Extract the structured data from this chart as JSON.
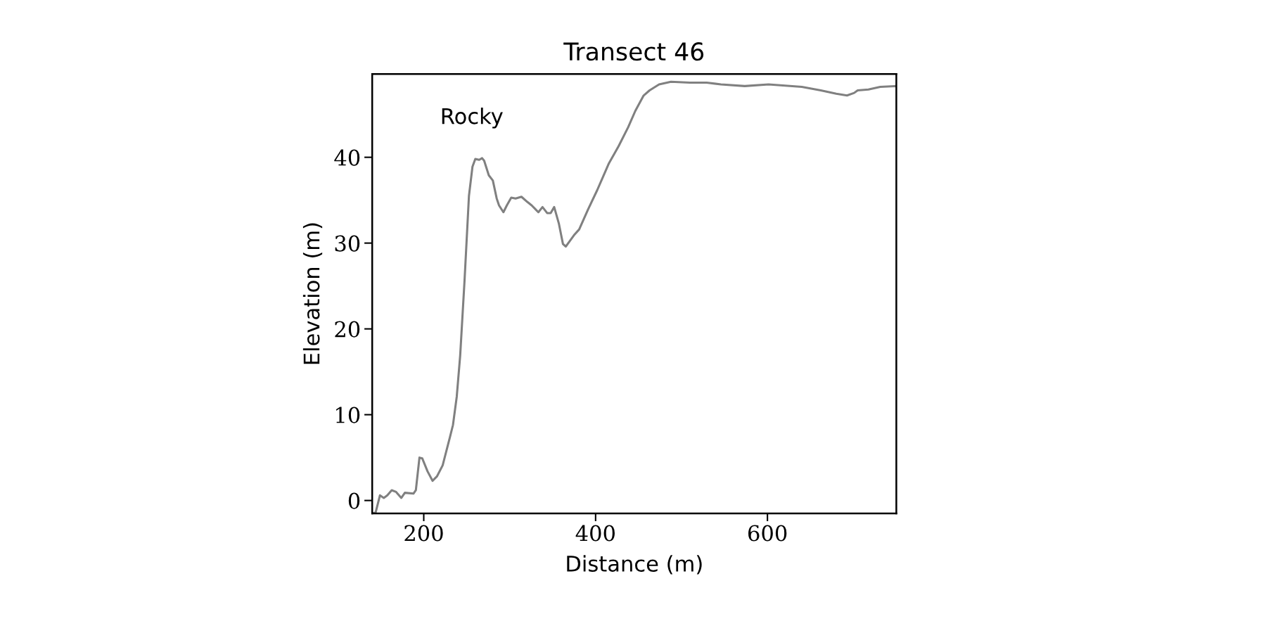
{
  "chart_data": {
    "type": "line",
    "title": "Transect 46",
    "xlabel": "Distance (m)",
    "ylabel": "Elevation (m)",
    "annotations": [
      "Rocky"
    ],
    "series": [
      {
        "color": "#808080",
        "x": [
          140,
          144,
          149,
          153.5,
          157.6,
          162.7,
          167.8,
          173.9,
          178,
          188,
          190.8,
          195,
          198.3,
          204.4,
          210.2,
          215.3,
          222,
          230.5,
          234,
          238.4,
          242.4,
          247.5,
          252.6,
          256.7,
          260,
          264.5,
          267.9,
          270.3,
          275.7,
          280.4,
          284.9,
          287.6,
          292.7,
          296.7,
          301.8,
          306.9,
          313.7,
          320.5,
          325.6,
          333.4,
          338.2,
          343.6,
          347.7,
          351.8,
          357.2,
          362,
          365.3,
          369.7,
          375.5,
          380.9,
          391.1,
          402,
          415.5,
          426.8,
          437.9,
          446.2,
          455.9,
          462.8,
          473.9,
          487.7,
          509.9,
          529.3,
          545.9,
          573.6,
          601.3,
          640,
          662.1,
          680.1,
          692.6,
          700.9,
          705,
          717.5,
          731.3,
          750
        ],
        "values": [
          -1.5,
          -1.4,
          0.6,
          0.3,
          0.6,
          1.2,
          1.0,
          0.3,
          0.9,
          0.8,
          1.2,
          5.0,
          4.9,
          3.4,
          2.3,
          2.8,
          4.1,
          7.4,
          8.8,
          12.1,
          16.9,
          25.7,
          35.5,
          38.9,
          39.8,
          39.7,
          39.9,
          39.6,
          37.9,
          37.3,
          35.2,
          34.4,
          33.6,
          34.4,
          35.3,
          35.2,
          35.4,
          34.8,
          34.4,
          33.6,
          34.2,
          33.5,
          33.5,
          34.2,
          32.3,
          29.9,
          29.6,
          30.2,
          31.0,
          31.6,
          33.9,
          36.2,
          39.3,
          41.3,
          43.5,
          45.4,
          47.2,
          47.8,
          48.5,
          48.8,
          48.7,
          48.7,
          48.5,
          48.3,
          48.5,
          48.2,
          47.8,
          47.4,
          47.2,
          47.5,
          47.8,
          47.9,
          48.2,
          48.3
        ]
      }
    ],
    "xlim": [
      140,
      750
    ],
    "xticks": [
      200,
      400,
      600
    ],
    "ylim": [
      -1.5,
      49.7
    ],
    "yticks": [
      0,
      10,
      20,
      30,
      40
    ],
    "grid": false,
    "marker": "none",
    "line_style": "solid"
  }
}
